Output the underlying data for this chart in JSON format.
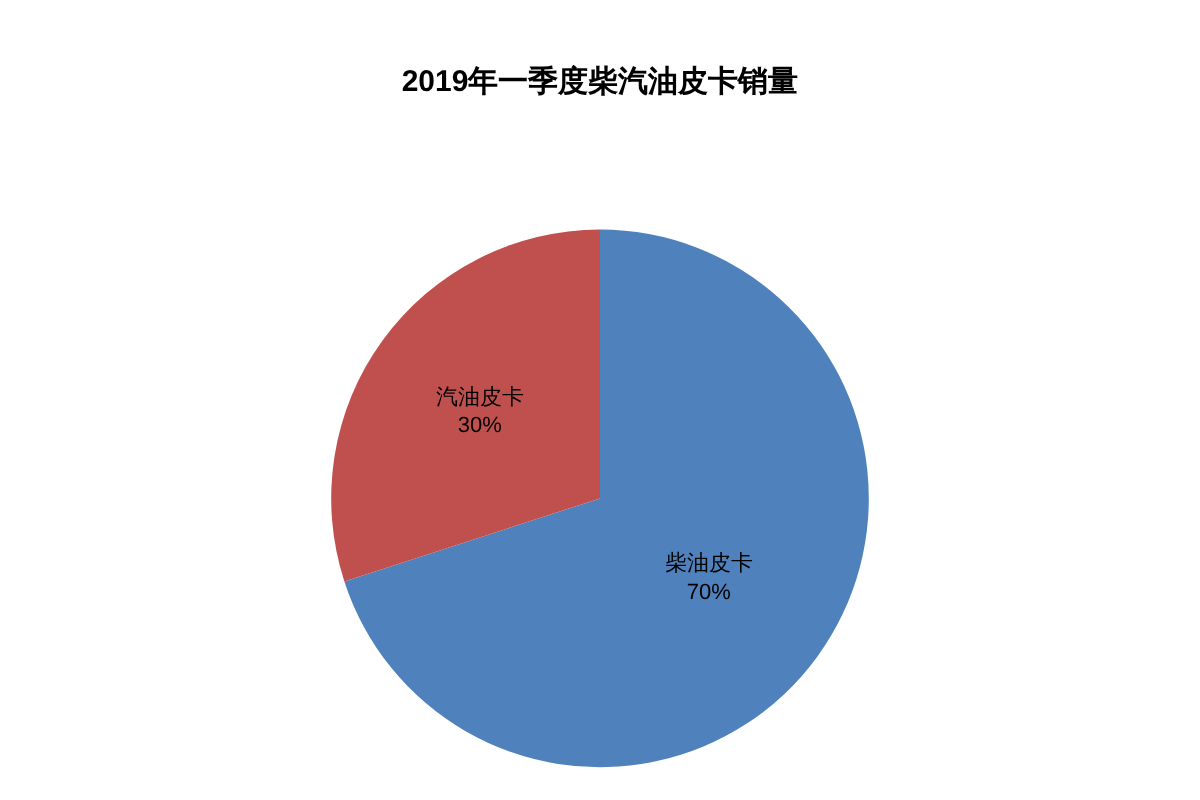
{
  "chart_data": {
    "type": "pie",
    "title": "2019年一季度柴汽油皮卡销量",
    "categories": [
      "柴油皮卡",
      "汽油皮卡"
    ],
    "values": [
      70,
      30
    ],
    "colors": [
      "#4f81bd",
      "#c0504d"
    ],
    "value_labels": [
      "70%",
      "30%"
    ],
    "legend": false
  }
}
